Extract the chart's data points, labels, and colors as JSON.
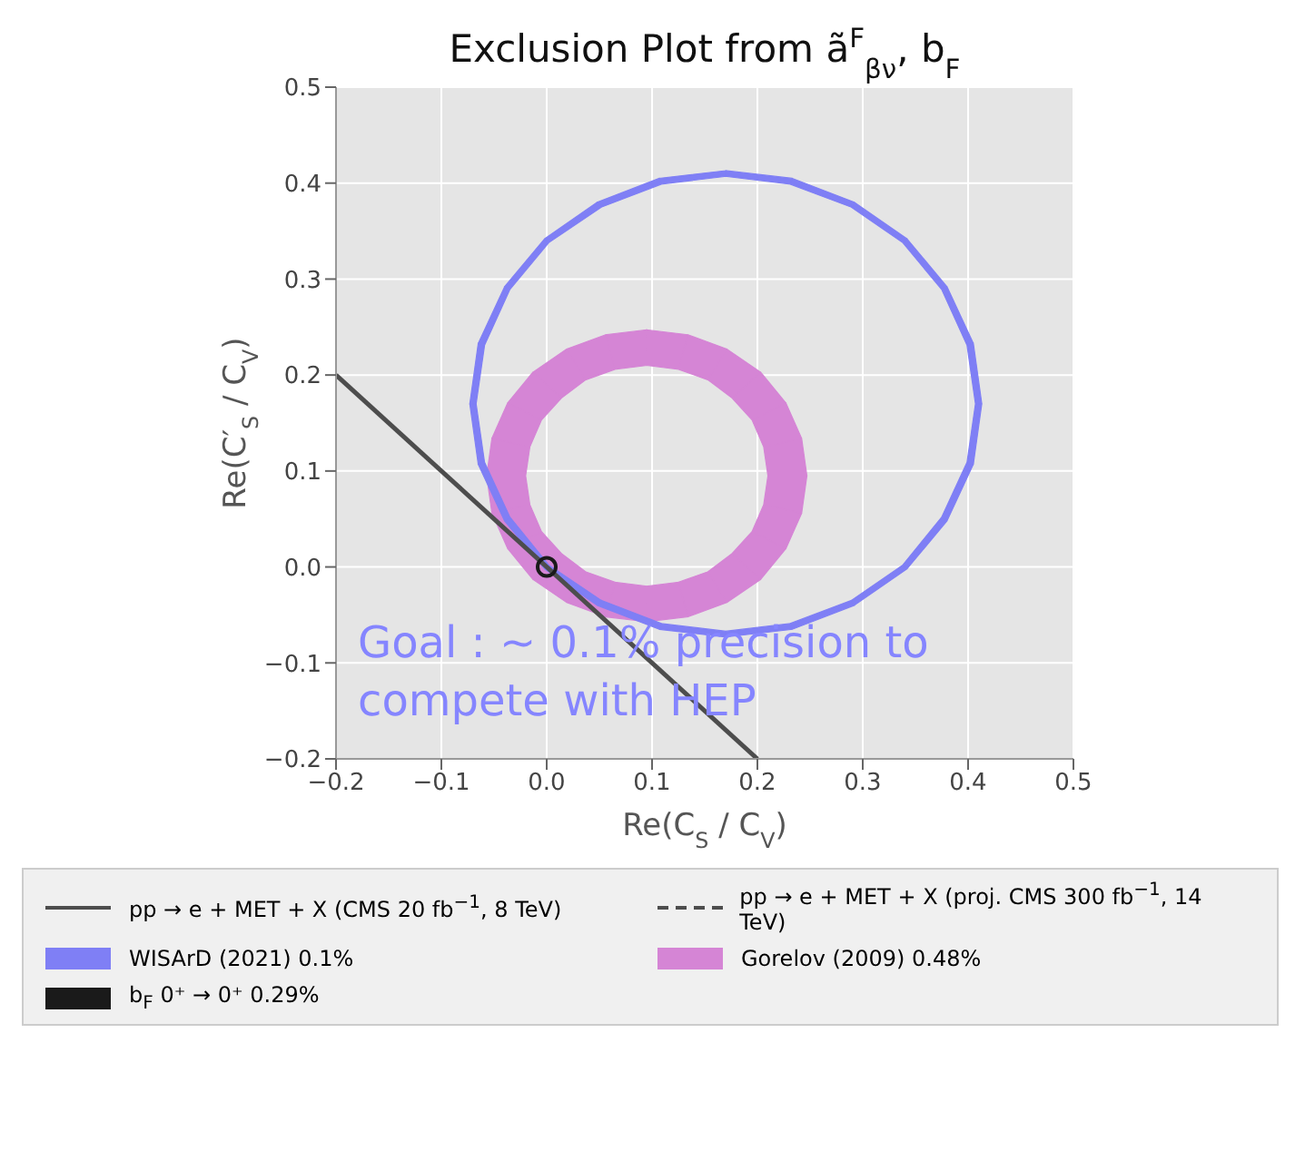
{
  "chart_data": {
    "type": "line",
    "title": "Exclusion Plot from ã$^{F}$$_{βν}$, b$_{F}$",
    "xlabel": "Re(C$_{S}$ / C$_{V}$)",
    "ylabel": "Re(C′$_{S}$ / C$_{V}$)",
    "xlim": [
      -0.2,
      0.5
    ],
    "ylim": [
      -0.2,
      0.5
    ],
    "xticks": [
      {
        "value": -0.2,
        "label": "−0.2"
      },
      {
        "value": -0.1,
        "label": "−0.1"
      },
      {
        "value": 0,
        "label": "0.0"
      },
      {
        "value": 0.1,
        "label": "0.1"
      },
      {
        "value": 0.2,
        "label": "0.2"
      },
      {
        "value": 0.3,
        "label": "0.3"
      },
      {
        "value": 0.4,
        "label": "0.4"
      },
      {
        "value": 0.5,
        "label": "0.5"
      }
    ],
    "yticks": [
      {
        "value": -0.2,
        "label": "−0.2"
      },
      {
        "value": -0.1,
        "label": "−0.1"
      },
      {
        "value": 0,
        "label": "0.0"
      },
      {
        "value": 0.1,
        "label": "0.1"
      },
      {
        "value": 0.2,
        "label": "0.2"
      },
      {
        "value": 0.3,
        "label": "0.3"
      },
      {
        "value": 0.4,
        "label": "0.4"
      },
      {
        "value": 0.5,
        "label": "0.5"
      }
    ],
    "grid": true,
    "legend": "bottom",
    "series": [
      {
        "name": "pp → e + MET + X (CMS 20 fb$^{−1}$, 8 TeV)",
        "line_style": "solid",
        "color": "#4d4d4d",
        "x": [
          -0.2,
          0.2
        ],
        "values": [
          0.2,
          -0.2
        ]
      },
      {
        "name": "pp → e + MET + X (proj. CMS 300 fb$^{−1}$, 14 TeV)",
        "line_style": "dashed",
        "color": "#4d4d4d"
      },
      {
        "name": "WISArD (2021) 0.1%",
        "type": "area",
        "color": "#7f7ff5",
        "x": [
          0.413,
          0.405,
          0.38,
          0.342,
          0.292,
          0.233,
          0.17,
          0.107,
          0.048,
          -0.002,
          -0.04,
          -0.065,
          -0.073,
          -0.065,
          -0.04,
          -0.002,
          0.048,
          0.107,
          0.17,
          0.233,
          0.292,
          0.342,
          0.38,
          0.405,
          null,
          0.407,
          0.399,
          0.375,
          0.338,
          0.289,
          0.231,
          0.17,
          0.109,
          0.052,
          0.002,
          -0.035,
          -0.059,
          -0.067,
          -0.059,
          -0.035,
          0.002,
          0.052,
          0.109,
          0.17,
          0.231,
          0.289,
          0.338,
          0.375,
          0.399
        ],
        "values": [
          0.17,
          0.233,
          0.292,
          0.342,
          0.38,
          0.405,
          0.413,
          0.405,
          0.38,
          0.342,
          0.292,
          0.233,
          0.17,
          0.107,
          0.048,
          -0.002,
          -0.04,
          -0.065,
          -0.073,
          -0.065,
          -0.04,
          -0.002,
          0.048,
          0.107,
          null,
          0.17,
          0.231,
          0.289,
          0.338,
          0.375,
          0.399,
          0.407,
          0.399,
          0.375,
          0.338,
          0.289,
          0.231,
          0.17,
          0.109,
          0.052,
          0.002,
          -0.035,
          -0.059,
          -0.067,
          -0.059,
          -0.035,
          0.002,
          0.052,
          0.109
        ]
      },
      {
        "name": "Gorelov (2009) 0.48%",
        "type": "area",
        "color": "#d585d5",
        "x": [
          0.247,
          0.242,
          0.227,
          0.203,
          0.171,
          0.134,
          0.095,
          0.056,
          0.019,
          -0.013,
          -0.037,
          -0.052,
          -0.057,
          -0.052,
          -0.037,
          -0.013,
          0.019,
          0.056,
          0.095,
          0.134,
          0.171,
          0.203,
          0.227,
          0.242,
          null,
          0.21,
          0.206,
          0.195,
          0.176,
          0.153,
          0.125,
          0.095,
          0.065,
          0.037,
          0.014,
          -0.005,
          -0.016,
          -0.02,
          -0.016,
          -0.005,
          0.014,
          0.037,
          0.065,
          0.095,
          0.125,
          0.153,
          0.176,
          0.195,
          0.206
        ],
        "values": [
          0.095,
          0.134,
          0.171,
          0.203,
          0.227,
          0.242,
          0.247,
          0.242,
          0.227,
          0.203,
          0.171,
          0.134,
          0.095,
          0.056,
          0.019,
          -0.013,
          -0.037,
          -0.052,
          -0.057,
          -0.052,
          -0.037,
          -0.013,
          0.019,
          0.056,
          null,
          0.095,
          0.125,
          0.153,
          0.176,
          0.195,
          0.206,
          0.21,
          0.206,
          0.195,
          0.176,
          0.153,
          0.125,
          0.095,
          0.065,
          0.037,
          0.014,
          -0.005,
          -0.016,
          -0.02,
          -0.016,
          -0.005,
          0.014,
          0.037,
          0.065
        ]
      },
      {
        "name": "b$_{F}$ 0⁺ → 0⁺ 0.29%",
        "type": "scatter",
        "marker": "circle",
        "color": "#1a1a1a",
        "x": [
          0
        ],
        "values": [
          0
        ]
      }
    ],
    "annotations": [
      "Goal : ~ 0.1% precision to compete with HEP"
    ]
  }
}
